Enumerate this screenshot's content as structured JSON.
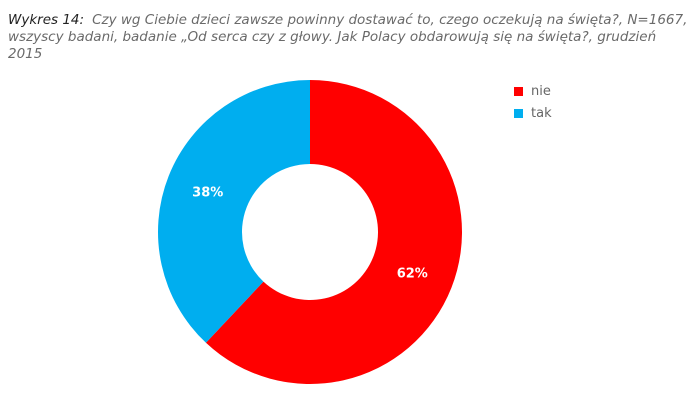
{
  "caption": {
    "label": "Wykres 14:",
    "text": "Czy wg Ciebie dzieci zawsze powinny dostawać to, czego oczekują na święta?, N=1667, wszyscy badani, badanie „Od serca czy z głowy. Jak Polacy obdarowują się na święta?, grudzień 2015"
  },
  "chart_data": {
    "type": "pie",
    "donut": true,
    "title": "",
    "labels": [
      "nie",
      "tak"
    ],
    "values": [
      62,
      38
    ],
    "value_labels": [
      "62%",
      "38%"
    ],
    "colors": [
      "#ff0000",
      "#00aeef"
    ],
    "legend_position": "right"
  }
}
